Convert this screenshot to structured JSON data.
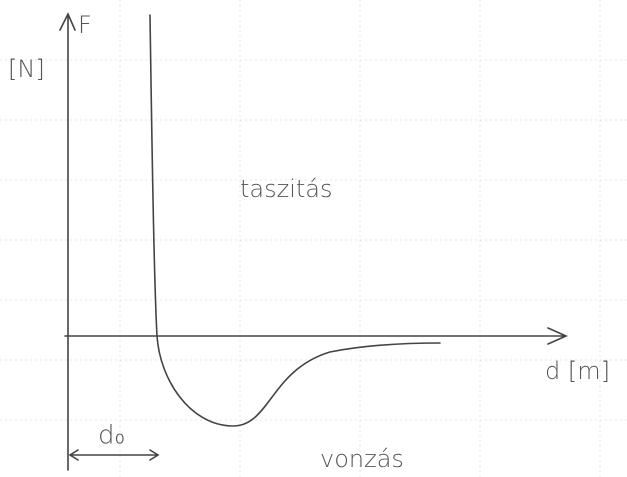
{
  "axes": {
    "y_label": "F",
    "y_unit": "[N]",
    "x_label": "d [m]"
  },
  "regions": {
    "repulsion": "taszitás",
    "attraction": "vonzás"
  },
  "distance_label": "d₀"
}
